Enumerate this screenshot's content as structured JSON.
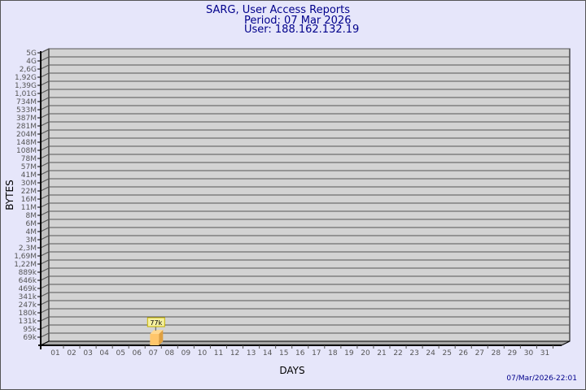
{
  "title": {
    "line1": "SARG, User Access Reports",
    "line2": "Period: 07 Mar 2026",
    "line3": "User: 188.162.132.19"
  },
  "timestamp": "07/Mar/2026-22:01",
  "colors": {
    "background": "#e6e6fa",
    "plot": "#d3d3d3",
    "bar": "#ffc66b",
    "bar_side": "#e0a040",
    "label_bg": "#f5f0a0",
    "title": "#00008b"
  },
  "chart_data": {
    "type": "bar",
    "xlabel": "DAYS",
    "ylabel": "BYTES",
    "y_scale": "non-linear (bytes)",
    "grid": true,
    "y_ticks": [
      "5G",
      "4G",
      "2,6G",
      "1,92G",
      "1,39G",
      "1,01G",
      "734M",
      "533M",
      "387M",
      "281M",
      "204M",
      "148M",
      "108M",
      "78M",
      "57M",
      "41M",
      "30M",
      "22M",
      "16M",
      "11M",
      "8M",
      "6M",
      "4M",
      "3M",
      "2,3M",
      "1,69M",
      "1,22M",
      "889k",
      "646k",
      "469k",
      "341k",
      "247k",
      "180k",
      "131k",
      "95k",
      "69k"
    ],
    "categories": [
      "01",
      "02",
      "03",
      "04",
      "05",
      "06",
      "07",
      "08",
      "09",
      "10",
      "11",
      "12",
      "13",
      "14",
      "15",
      "16",
      "17",
      "18",
      "19",
      "20",
      "21",
      "22",
      "23",
      "24",
      "25",
      "26",
      "27",
      "28",
      "29",
      "30",
      "31"
    ],
    "values": [
      null,
      null,
      null,
      null,
      null,
      null,
      "77k",
      null,
      null,
      null,
      null,
      null,
      null,
      null,
      null,
      null,
      null,
      null,
      null,
      null,
      null,
      null,
      null,
      null,
      null,
      null,
      null,
      null,
      null,
      null,
      null
    ],
    "data_labels": [
      {
        "day": "07",
        "label": "77k"
      }
    ]
  }
}
